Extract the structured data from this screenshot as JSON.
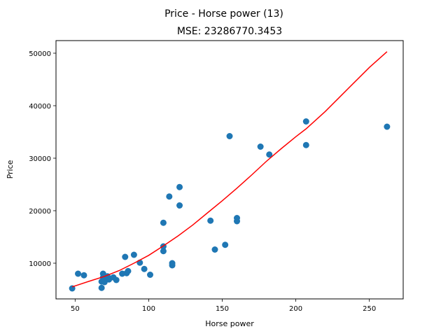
{
  "chart_data": {
    "type": "scatter",
    "suptitle": "Price - Horse power (13)",
    "title": "MSE: 23286770.3453",
    "xlabel": "Horse power",
    "ylabel": "Price",
    "xlim": [
      37,
      273
    ],
    "ylim": [
      3200,
      52400
    ],
    "xticks": [
      50,
      100,
      150,
      200,
      250
    ],
    "yticks": [
      10000,
      20000,
      30000,
      40000,
      50000
    ],
    "xtick_labels": [
      "50",
      "100",
      "150",
      "200",
      "250"
    ],
    "ytick_labels": [
      "10000",
      "20000",
      "30000",
      "40000",
      "50000"
    ],
    "grid": false,
    "scatter_color": "#1f77b4",
    "line_color": "#ff0000",
    "points": [
      {
        "x": 48,
        "y": 5200
      },
      {
        "x": 52,
        "y": 8000
      },
      {
        "x": 56,
        "y": 7700
      },
      {
        "x": 68,
        "y": 5300
      },
      {
        "x": 68,
        "y": 6500
      },
      {
        "x": 69,
        "y": 8000
      },
      {
        "x": 69,
        "y": 7300
      },
      {
        "x": 70,
        "y": 6400
      },
      {
        "x": 70,
        "y": 7000
      },
      {
        "x": 72,
        "y": 7500
      },
      {
        "x": 73,
        "y": 6900
      },
      {
        "x": 76,
        "y": 7300
      },
      {
        "x": 78,
        "y": 6800
      },
      {
        "x": 82,
        "y": 8000
      },
      {
        "x": 84,
        "y": 11200
      },
      {
        "x": 85,
        "y": 8100
      },
      {
        "x": 86,
        "y": 8500
      },
      {
        "x": 90,
        "y": 11600
      },
      {
        "x": 94,
        "y": 10100
      },
      {
        "x": 97,
        "y": 8900
      },
      {
        "x": 101,
        "y": 7800
      },
      {
        "x": 110,
        "y": 17700
      },
      {
        "x": 110,
        "y": 12300
      },
      {
        "x": 110,
        "y": 13200
      },
      {
        "x": 114,
        "y": 22700
      },
      {
        "x": 116,
        "y": 9600
      },
      {
        "x": 116,
        "y": 10000
      },
      {
        "x": 121,
        "y": 24500
      },
      {
        "x": 121,
        "y": 21000
      },
      {
        "x": 142,
        "y": 18100
      },
      {
        "x": 145,
        "y": 12600
      },
      {
        "x": 152,
        "y": 13500
      },
      {
        "x": 155,
        "y": 34200
      },
      {
        "x": 160,
        "y": 18600
      },
      {
        "x": 160,
        "y": 18000
      },
      {
        "x": 176,
        "y": 32200
      },
      {
        "x": 182,
        "y": 30700
      },
      {
        "x": 207,
        "y": 37000
      },
      {
        "x": 207,
        "y": 32500
      },
      {
        "x": 262,
        "y": 36000
      }
    ],
    "fit_line": [
      {
        "x": 48,
        "y": 5500
      },
      {
        "x": 60,
        "y": 6600
      },
      {
        "x": 70,
        "y": 7500
      },
      {
        "x": 80,
        "y": 8600
      },
      {
        "x": 90,
        "y": 10000
      },
      {
        "x": 100,
        "y": 11500
      },
      {
        "x": 110,
        "y": 13300
      },
      {
        "x": 120,
        "y": 15200
      },
      {
        "x": 130,
        "y": 17300
      },
      {
        "x": 140,
        "y": 19600
      },
      {
        "x": 150,
        "y": 21900
      },
      {
        "x": 160,
        "y": 24300
      },
      {
        "x": 170,
        "y": 26800
      },
      {
        "x": 180,
        "y": 29400
      },
      {
        "x": 190,
        "y": 31800
      },
      {
        "x": 200,
        "y": 34100
      },
      {
        "x": 207,
        "y": 35600
      },
      {
        "x": 220,
        "y": 38900
      },
      {
        "x": 230,
        "y": 41700
      },
      {
        "x": 240,
        "y": 44500
      },
      {
        "x": 250,
        "y": 47300
      },
      {
        "x": 262,
        "y": 50300
      }
    ]
  }
}
